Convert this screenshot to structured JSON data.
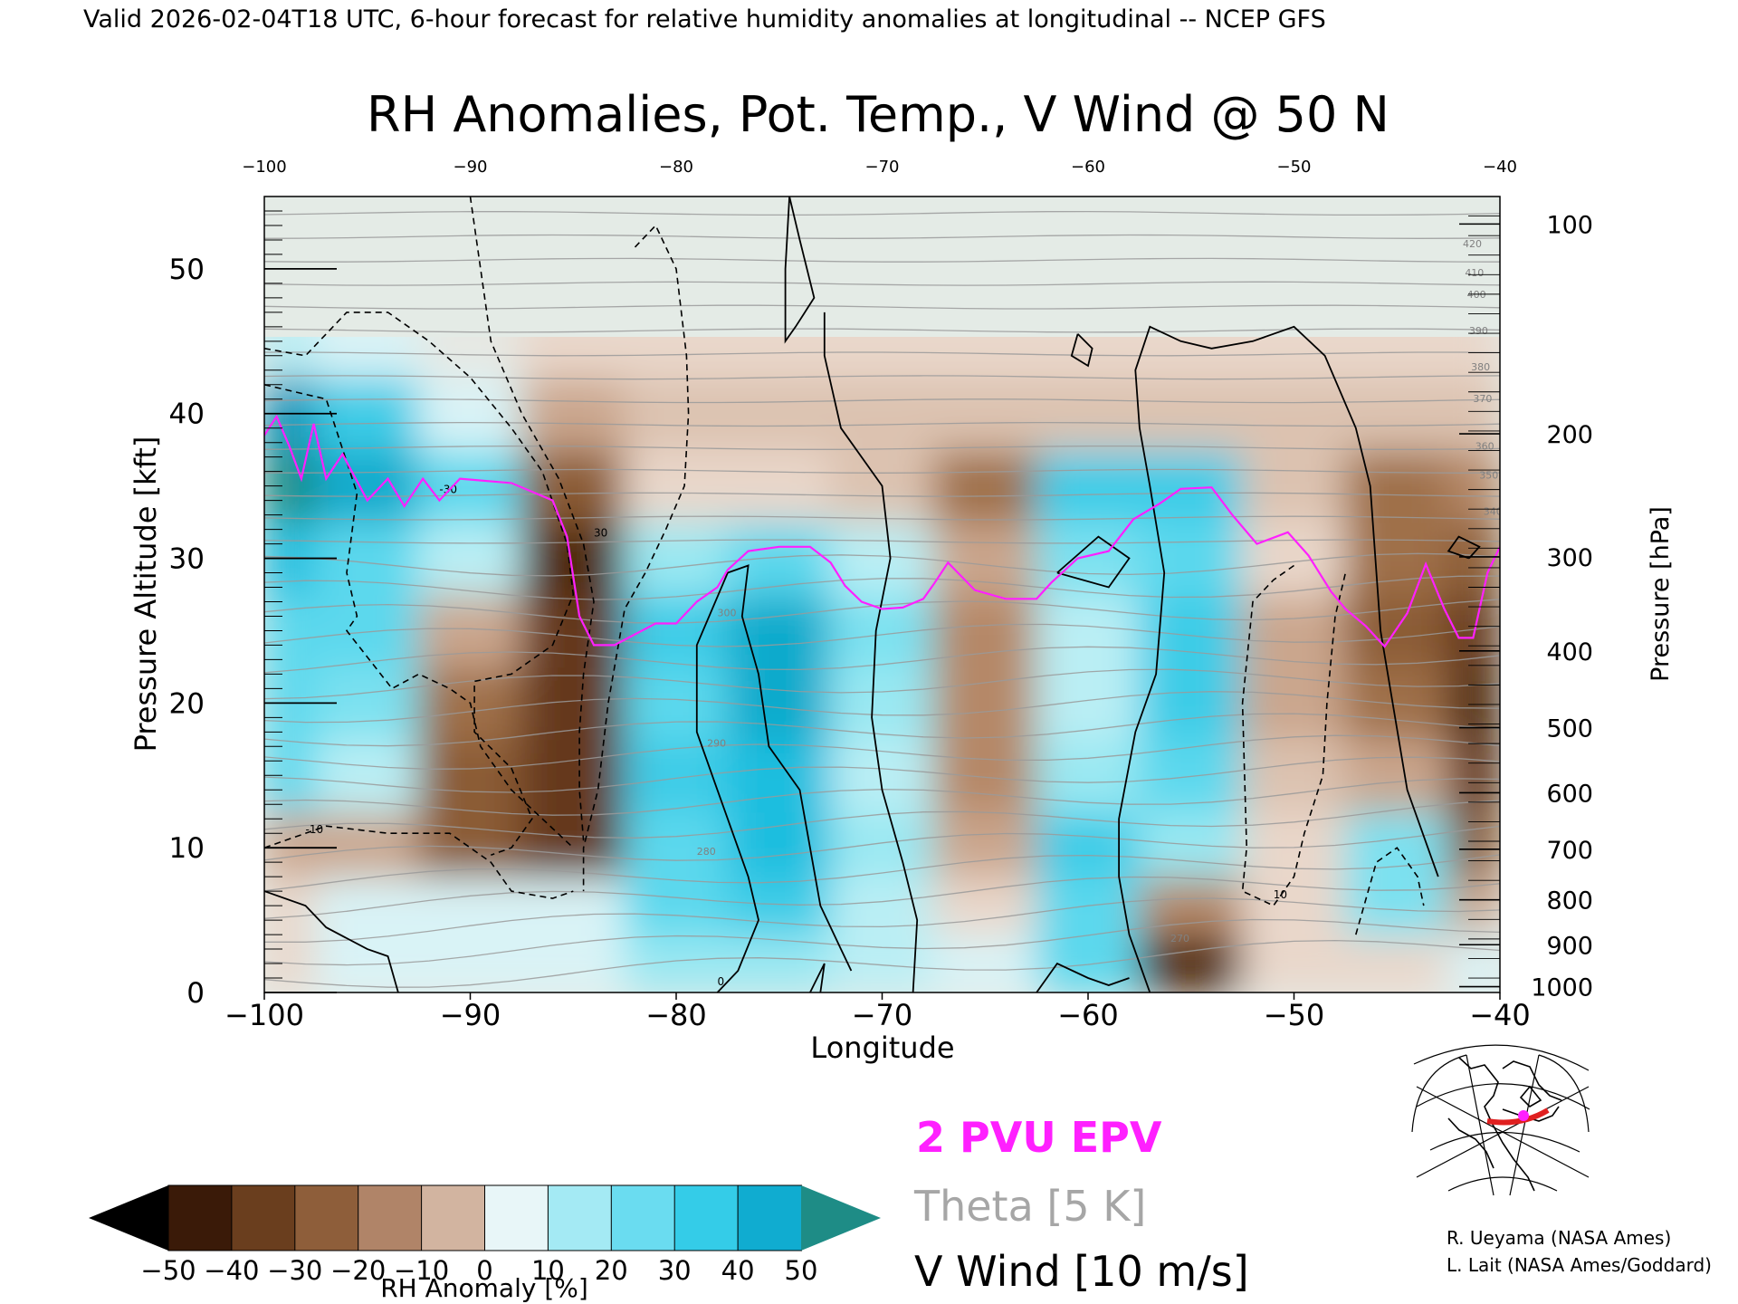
{
  "header": {
    "caption": "Valid 2026-02-04T18 UTC, 6-hour forecast for relative humidity anomalies at longitudinal -- NCEP GFS"
  },
  "chart_data": {
    "type": "heatmap",
    "title": "RH Anomalies, Pot. Temp., V Wind @ 50 N",
    "xlabel": "Longitude",
    "ylabel_left": "Pressure Altitude [kft]",
    "ylabel_right": "Pressure [hPa]",
    "xlim": [
      -100,
      -40
    ],
    "ylim": [
      0,
      55
    ],
    "x_ticks": [
      -100,
      -90,
      -80,
      -70,
      -60,
      -50,
      -40
    ],
    "x_tick_labels": [
      "−100",
      "−90",
      "−80",
      "−70",
      "−60",
      "−50",
      "−40"
    ],
    "y_ticks": [
      0,
      10,
      20,
      30,
      40,
      50
    ],
    "y_tick_labels": [
      "0",
      "10",
      "20",
      "30",
      "40",
      "50"
    ],
    "pressure_ticks": [
      {
        "hpa": "100",
        "kft": 53.1
      },
      {
        "hpa": "200",
        "kft": 38.6
      },
      {
        "hpa": "300",
        "kft": 30.1
      },
      {
        "hpa": "400",
        "kft": 23.6
      },
      {
        "hpa": "500",
        "kft": 18.3
      },
      {
        "hpa": "600",
        "kft": 13.8
      },
      {
        "hpa": "700",
        "kft": 9.9
      },
      {
        "hpa": "800",
        "kft": 6.4
      },
      {
        "hpa": "900",
        "kft": 3.3
      },
      {
        "hpa": "1000",
        "kft": 0.4
      }
    ],
    "colorbar": {
      "label": "RH Anomaly [%]",
      "tick_labels": [
        "−50",
        "−40",
        "−30",
        "−20",
        "−10",
        "0",
        "10",
        "20",
        "30",
        "40",
        "50"
      ],
      "under_color": "#000000",
      "over_color": "#1e8c86",
      "colors": [
        "#3a1a08",
        "#5c3214",
        "#7a4a28",
        "#96663e",
        "#b88c6c",
        "#d8bca8",
        "#ecdcd0",
        "#e0f4f6",
        "#b0ecf4",
        "#80e2f0",
        "#4ed4ec",
        "#20c0e0",
        "#0aa0c4",
        "#0c7ca0"
      ],
      "band_colors": [
        "#3a1a08",
        "#6a3e1e",
        "#8e5e3a",
        "#b08468",
        "#d2b4a0",
        "#e8f6f8",
        "#a4eaf4",
        "#6adcf0",
        "#34cce8",
        "#10acd0"
      ]
    },
    "rh_anomaly_field": {
      "units": "%",
      "lon": [
        -100,
        -95,
        -90,
        -85,
        -80,
        -75,
        -70,
        -65,
        -60,
        -55,
        -50,
        -45,
        -40
      ],
      "alt_kft": [
        2,
        6,
        10,
        15,
        20,
        25,
        30,
        35,
        40,
        45,
        50
      ],
      "values": [
        [
          -5,
          5,
          5,
          5,
          15,
          15,
          10,
          5,
          25,
          -45,
          -5,
          -5,
          5
        ],
        [
          -5,
          5,
          5,
          5,
          25,
          30,
          10,
          -5,
          25,
          -20,
          -5,
          20,
          -15
        ],
        [
          -15,
          -15,
          -30,
          -40,
          25,
          35,
          15,
          -15,
          30,
          15,
          -5,
          20,
          -30
        ],
        [
          25,
          10,
          -30,
          -40,
          30,
          35,
          10,
          -20,
          15,
          25,
          -10,
          -15,
          -40
        ],
        [
          25,
          20,
          -25,
          -40,
          25,
          40,
          15,
          -20,
          10,
          30,
          -15,
          -25,
          -45
        ],
        [
          25,
          25,
          -15,
          -40,
          30,
          40,
          20,
          -20,
          10,
          30,
          -15,
          -30,
          -40
        ],
        [
          35,
          25,
          10,
          -45,
          15,
          25,
          10,
          -15,
          20,
          25,
          -5,
          -25,
          -30
        ],
        [
          50,
          40,
          25,
          -30,
          -5,
          -5,
          -10,
          -25,
          30,
          30,
          -10,
          -25,
          -20
        ],
        [
          45,
          30,
          5,
          -15,
          -10,
          -10,
          -10,
          -10,
          -10,
          -10,
          -10,
          -10,
          -10
        ],
        [
          10,
          5,
          0,
          -5,
          -5,
          -5,
          -5,
          -5,
          -5,
          -5,
          -5,
          -5,
          -5
        ],
        [
          0,
          0,
          0,
          0,
          0,
          0,
          0,
          0,
          0,
          0,
          0,
          0,
          0
        ]
      ]
    },
    "theta_contours": {
      "units": "K",
      "interval": 5,
      "labeled_levels": [
        "270",
        "280",
        "290",
        "300",
        "340",
        "350",
        "360",
        "370",
        "380",
        "390",
        "400",
        "410",
        "420"
      ]
    },
    "v_wind_contours": {
      "units": "m/s",
      "interval": 10,
      "labeled_levels": [
        "-30",
        "-10",
        "0",
        "10",
        "30"
      ],
      "zero_lines": [
        [
          [
            -100,
            7
          ],
          [
            -98,
            6
          ],
          [
            -97,
            4.5
          ],
          [
            -95,
            3
          ],
          [
            -94,
            2.5
          ],
          [
            -93.5,
            0
          ]
        ],
        [
          [
            -78,
            0
          ],
          [
            -77,
            1.5
          ],
          [
            -76,
            5
          ],
          [
            -76.5,
            8
          ],
          [
            -77,
            10
          ],
          [
            -78,
            14
          ],
          [
            -79,
            18
          ],
          [
            -79,
            24
          ],
          [
            -77.5,
            29
          ],
          [
            -76.5,
            29.5
          ],
          [
            -76.8,
            26
          ],
          [
            -76,
            22
          ],
          [
            -75.5,
            17
          ],
          [
            -74,
            14
          ],
          [
            -73.5,
            10
          ],
          [
            -73,
            6
          ],
          [
            -72,
            3
          ],
          [
            -71.5,
            1.5
          ]
        ],
        [
          [
            -68.5,
            0
          ],
          [
            -68.3,
            5
          ],
          [
            -69,
            9
          ],
          [
            -70,
            14
          ],
          [
            -70.5,
            19
          ],
          [
            -70.3,
            25
          ],
          [
            -69.6,
            30
          ],
          [
            -70,
            35
          ],
          [
            -72,
            39
          ],
          [
            -72.8,
            44
          ],
          [
            -72.8,
            47
          ]
        ],
        [
          [
            -73,
            0
          ],
          [
            -72.8,
            2
          ],
          [
            -73.5,
            0
          ]
        ],
        [
          [
            -74.5,
            55
          ],
          [
            -74.7,
            50
          ],
          [
            -74.7,
            45
          ],
          [
            -74.2,
            46
          ],
          [
            -73.3,
            48
          ],
          [
            -74,
            52
          ],
          [
            -74.5,
            55
          ]
        ],
        [
          [
            -62.5,
            0
          ],
          [
            -61.5,
            2
          ],
          [
            -60,
            1
          ],
          [
            -59,
            0.5
          ],
          [
            -58,
            1
          ]
        ],
        [
          [
            -57,
            0
          ],
          [
            -58,
            4
          ],
          [
            -58.5,
            8
          ],
          [
            -58.5,
            12
          ],
          [
            -57.7,
            18
          ],
          [
            -56.7,
            22
          ],
          [
            -56.3,
            29
          ],
          [
            -57,
            35
          ],
          [
            -57.5,
            39
          ],
          [
            -57.7,
            43
          ],
          [
            -57,
            46
          ],
          [
            -55.5,
            45
          ],
          [
            -54,
            44.5
          ],
          [
            -52,
            45
          ],
          [
            -50,
            46
          ],
          [
            -48.5,
            44
          ],
          [
            -47,
            39
          ],
          [
            -46.3,
            35
          ],
          [
            -45.8,
            25
          ],
          [
            -44.5,
            14
          ],
          [
            -43.5,
            10
          ],
          [
            -43,
            8
          ]
        ],
        [
          [
            -41.5,
            30
          ],
          [
            -42.5,
            30.5
          ],
          [
            -42,
            31.5
          ],
          [
            -41,
            30.8
          ],
          [
            -41.5,
            30
          ]
        ],
        [
          [
            -61.5,
            29
          ],
          [
            -59.5,
            31.5
          ],
          [
            -58,
            30
          ],
          [
            -59,
            28
          ],
          [
            -61.5,
            29
          ]
        ],
        [
          [
            -60.5,
            45.5
          ],
          [
            -59.8,
            44.5
          ],
          [
            -60,
            43.3
          ],
          [
            -60.8,
            44
          ],
          [
            -60.5,
            45.5
          ]
        ]
      ],
      "dashed_lines": [
        [
          [
            -90,
            55
          ],
          [
            -89.5,
            50
          ],
          [
            -89,
            45
          ],
          [
            -87.5,
            40
          ],
          [
            -85.7,
            35.5
          ],
          [
            -84.5,
            31
          ],
          [
            -84,
            27
          ],
          [
            -84.5,
            22
          ],
          [
            -84.7,
            18
          ],
          [
            -84.7,
            14
          ],
          [
            -84.5,
            10.5
          ]
        ],
        [
          [
            -100,
            44.5
          ],
          [
            -98,
            44
          ],
          [
            -96,
            47
          ],
          [
            -94,
            47
          ],
          [
            -92,
            45
          ],
          [
            -90,
            42.5
          ],
          [
            -88,
            39
          ],
          [
            -86.5,
            36
          ],
          [
            -85.3,
            31
          ],
          [
            -85,
            27.5
          ],
          [
            -86,
            24
          ],
          [
            -88,
            22
          ],
          [
            -89.8,
            21.5
          ],
          [
            -89.8,
            18
          ],
          [
            -88,
            15.5
          ],
          [
            -87,
            12
          ],
          [
            -88,
            10
          ],
          [
            -89,
            9.5
          ]
        ],
        [
          [
            -82,
            51.5
          ],
          [
            -81,
            53
          ],
          [
            -80,
            50
          ],
          [
            -79.5,
            44
          ],
          [
            -79.4,
            40
          ],
          [
            -79.6,
            35
          ],
          [
            -80.5,
            32
          ],
          [
            -81.5,
            29
          ],
          [
            -82.5,
            26.5
          ],
          [
            -83.3,
            20
          ],
          [
            -83.8,
            14
          ],
          [
            -84.5,
            10
          ],
          [
            -84.5,
            7
          ]
        ],
        [
          [
            -100,
            42
          ],
          [
            -98.5,
            41.5
          ],
          [
            -97,
            41
          ],
          [
            -95.5,
            34.5
          ],
          [
            -96,
            29
          ],
          [
            -95.5,
            26
          ],
          [
            -96,
            25
          ],
          [
            -93.8,
            21
          ],
          [
            -92.5,
            22
          ],
          [
            -91,
            21
          ],
          [
            -90,
            20
          ],
          [
            -89.5,
            17
          ],
          [
            -88,
            14
          ],
          [
            -85,
            10
          ]
        ],
        [
          [
            -100,
            10
          ],
          [
            -97,
            11.5
          ],
          [
            -94,
            11
          ],
          [
            -91,
            11
          ],
          [
            -89,
            9
          ],
          [
            -88,
            7
          ],
          [
            -86,
            6.5
          ],
          [
            -85,
            7
          ]
        ],
        [
          [
            -50,
            29.5
          ],
          [
            -51,
            28.5
          ],
          [
            -52,
            27
          ],
          [
            -52.5,
            20
          ],
          [
            -52.3,
            10
          ],
          [
            -52.5,
            7
          ],
          [
            -51,
            6
          ],
          [
            -50,
            8
          ],
          [
            -49.5,
            11
          ],
          [
            -48.6,
            15
          ],
          [
            -48.4,
            20
          ],
          [
            -48,
            26
          ],
          [
            -47.5,
            29
          ]
        ],
        [
          [
            -47,
            4
          ],
          [
            -46,
            9
          ],
          [
            -45,
            10
          ],
          [
            -44,
            8
          ],
          [
            -43.7,
            6
          ]
        ]
      ]
    },
    "epv_2pvu_line": {
      "label": "2 PVU EPV",
      "color": "#ff20ff",
      "points": [
        [
          -100,
          38.5
        ],
        [
          -99.4,
          39.8
        ],
        [
          -98.8,
          37.8
        ],
        [
          -98.2,
          35.5
        ],
        [
          -97.6,
          39.3
        ],
        [
          -97,
          35.5
        ],
        [
          -96.2,
          37.2
        ],
        [
          -95,
          34
        ],
        [
          -94,
          35.5
        ],
        [
          -93.2,
          33.6
        ],
        [
          -92.3,
          35.5
        ],
        [
          -91.5,
          34
        ],
        [
          -90.5,
          35.5
        ],
        [
          -88,
          35.2
        ],
        [
          -86,
          34
        ],
        [
          -85.3,
          31.5
        ],
        [
          -84.7,
          26
        ],
        [
          -84,
          24
        ],
        [
          -83,
          24
        ],
        [
          -81,
          25.5
        ],
        [
          -80,
          25.5
        ],
        [
          -79,
          27
        ],
        [
          -78,
          28
        ],
        [
          -77.5,
          29.2
        ],
        [
          -76.5,
          30.5
        ],
        [
          -75,
          30.8
        ],
        [
          -73.5,
          30.8
        ],
        [
          -72.5,
          29.7
        ],
        [
          -71.8,
          28.1
        ],
        [
          -71,
          27
        ],
        [
          -70,
          26.5
        ],
        [
          -69,
          26.6
        ],
        [
          -68,
          27.2
        ],
        [
          -67.5,
          28.2
        ],
        [
          -66.8,
          29.7
        ],
        [
          -65.5,
          27.8
        ],
        [
          -64,
          27.2
        ],
        [
          -62.5,
          27.2
        ],
        [
          -61.8,
          28.3
        ],
        [
          -60.5,
          30
        ],
        [
          -59,
          30.5
        ],
        [
          -57.8,
          32.7
        ],
        [
          -56.5,
          33.8
        ],
        [
          -55.5,
          34.8
        ],
        [
          -54,
          34.9
        ],
        [
          -53,
          33
        ],
        [
          -51.8,
          31
        ],
        [
          -50.3,
          31.8
        ],
        [
          -49.3,
          30.2
        ],
        [
          -48.2,
          27.7
        ],
        [
          -47.5,
          26.5
        ],
        [
          -46.5,
          25.3
        ],
        [
          -45.6,
          23.9
        ],
        [
          -44.5,
          26.2
        ],
        [
          -43.6,
          29.6
        ],
        [
          -42.7,
          26.5
        ],
        [
          -42,
          24.5
        ],
        [
          -41.3,
          24.5
        ],
        [
          -40.6,
          29
        ],
        [
          -40,
          30.8
        ]
      ]
    }
  },
  "legend": {
    "epv_label": "2 PVU EPV",
    "epv_color": "#ff20ff",
    "theta_label": "Theta [5 K]",
    "theta_color": "#a6a6a6",
    "wind_label": "V Wind [10 m/s]",
    "wind_color": "#000000"
  },
  "inset_map": {
    "icon": "polar-projection-map-icon",
    "section_line_color": "#e02020",
    "marker_color": "#ff20ff"
  },
  "credits": {
    "line1": "R. Ueyama (NASA Ames)",
    "line2": "L. Lait (NASA Ames/Goddard)"
  }
}
